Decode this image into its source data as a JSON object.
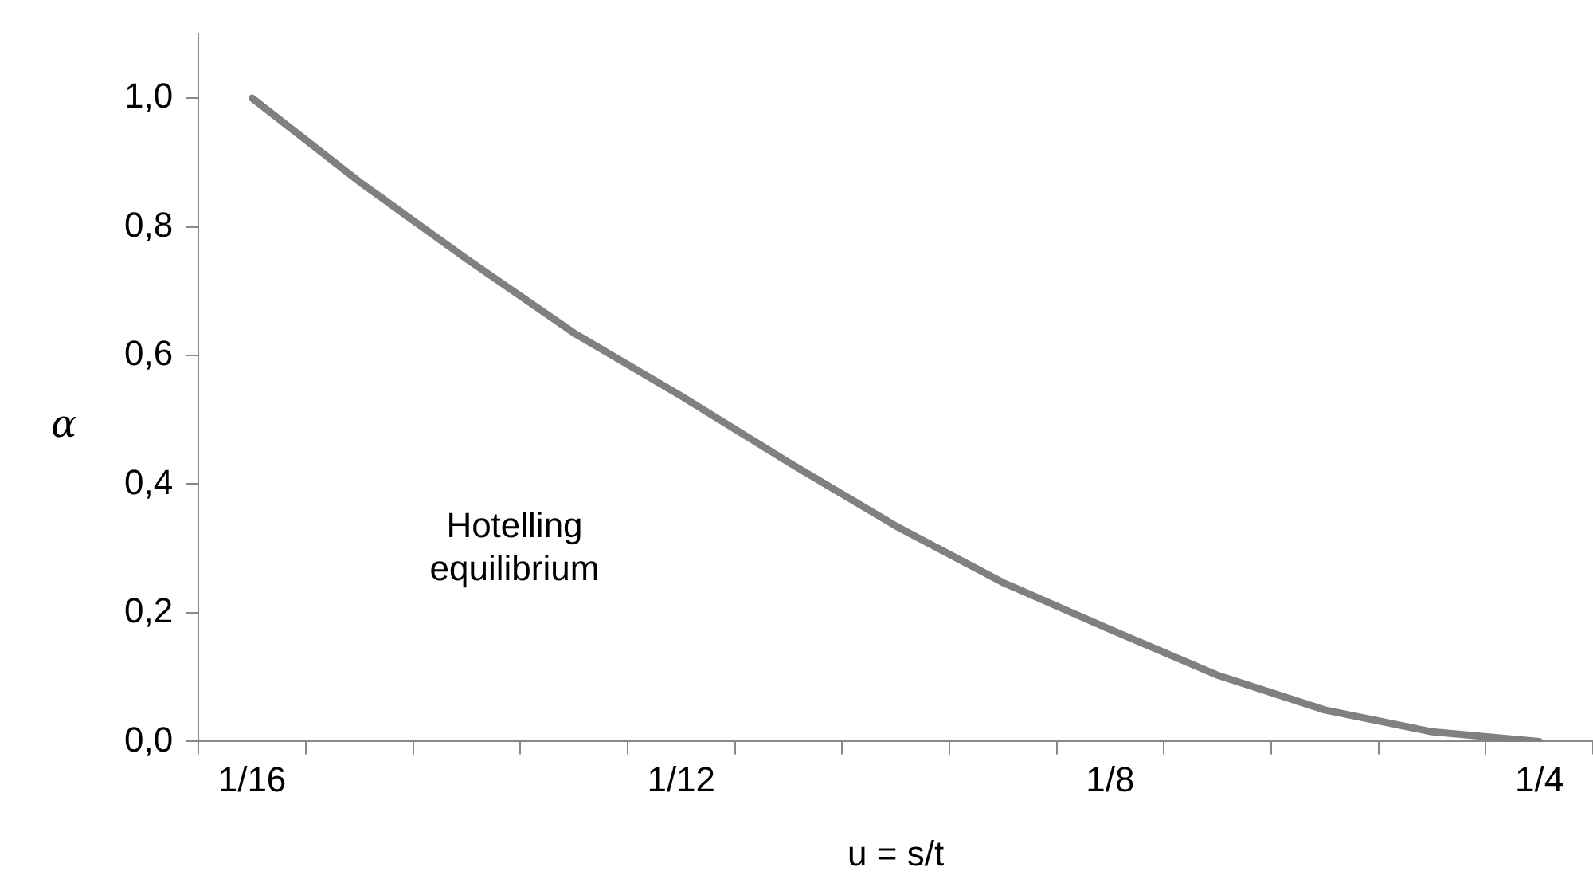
{
  "chart_data": {
    "type": "line",
    "xlabel": "u = s/t",
    "ylabel": "α",
    "categories": [
      "1/16",
      null,
      null,
      null,
      "1/12",
      null,
      null,
      null,
      "1/8",
      null,
      null,
      null,
      "1/4"
    ],
    "series": [
      {
        "color": "#808080",
        "values": [
          1.0,
          0.87,
          0.75,
          0.635,
          0.537,
          0.434,
          0.335,
          0.247,
          0.174,
          0.103,
          0.049,
          0.015,
          0.0
        ]
      }
    ],
    "ylim": [
      0,
      1.1
    ],
    "yticks": [
      {
        "value": 0,
        "label": "0,0"
      },
      {
        "value": 0.2,
        "label": "0,2"
      },
      {
        "value": 0.4,
        "label": "0,4"
      },
      {
        "value": 0.6,
        "label": "0,6"
      },
      {
        "value": 0.8,
        "label": "0,8"
      },
      {
        "value": 1.0,
        "label": "1,0"
      }
    ],
    "grid": false,
    "legend": false,
    "marker": "none",
    "line_style": "solid",
    "annotations": [
      "Hotelling equilibrium"
    ]
  }
}
